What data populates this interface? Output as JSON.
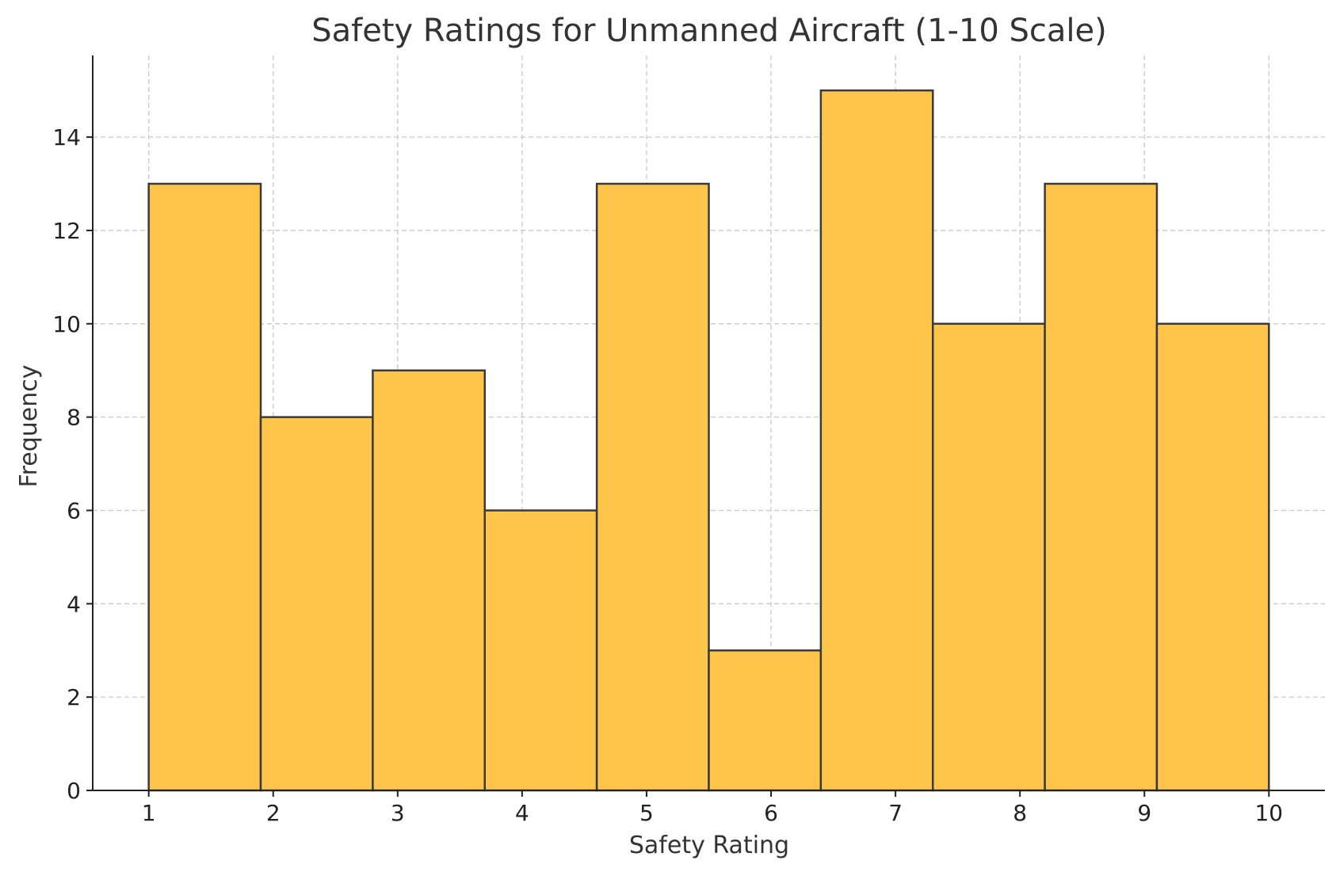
{
  "chart_data": {
    "type": "bar",
    "subtype": "histogram",
    "title": "Safety Ratings for Unmanned Aircraft (1-10 Scale)",
    "xlabel": "Safety Rating",
    "ylabel": "Frequency",
    "xlim": [
      0.55,
      10.45
    ],
    "ylim": [
      0,
      15.75
    ],
    "x_ticks": [
      1,
      2,
      3,
      4,
      5,
      6,
      7,
      8,
      9,
      10
    ],
    "y_ticks": [
      0,
      2,
      4,
      6,
      8,
      10,
      12,
      14
    ],
    "bins": [
      {
        "start": 1.0,
        "end": 1.9,
        "count": 13
      },
      {
        "start": 1.9,
        "end": 2.8,
        "count": 8
      },
      {
        "start": 2.8,
        "end": 3.7,
        "count": 9
      },
      {
        "start": 3.7,
        "end": 4.6,
        "count": 6
      },
      {
        "start": 4.6,
        "end": 5.5,
        "count": 13
      },
      {
        "start": 5.5,
        "end": 6.4,
        "count": 3
      },
      {
        "start": 6.4,
        "end": 7.3,
        "count": 15
      },
      {
        "start": 7.3,
        "end": 8.2,
        "count": 10
      },
      {
        "start": 8.2,
        "end": 9.1,
        "count": 13
      },
      {
        "start": 9.1,
        "end": 10.0,
        "count": 10
      }
    ],
    "grid": true,
    "bar_color": "#FFC54B",
    "edge_color": "#3A3A3A"
  }
}
